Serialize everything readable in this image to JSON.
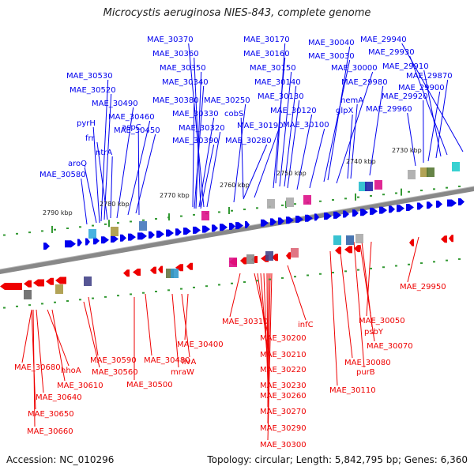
{
  "title": "Microcystis aeruginosa NIES-843, complete genome",
  "accession": "Accession: NC_010296",
  "topology": "Topology: circular; Length: 5,842,795 bp; Genes: 6,360",
  "colors": {
    "plus_strand": "#0000ee",
    "minus_strand": "#ee0000",
    "backbone": "#888888",
    "tick": "#339933"
  },
  "ticks": [
    "2730 kbp",
    "2740 kbp",
    "2750 kbp",
    "2760 kbp",
    "2770 kbp",
    "2780 kbp",
    "2790 kbp"
  ],
  "top_labels": [
    "MAE_29940",
    "MAE_30170",
    "MAE_30370",
    "MAE_30040",
    "MAE_29930",
    "MAE_30160",
    "MAE_30360",
    "MAE_30030",
    "MAE_29910",
    "MAE_30530",
    "MAE_30150",
    "MAE_30350",
    "MAE_30000",
    "MAE_29870",
    "MAE_30520",
    "MAE_30140",
    "MAE_30340",
    "MAE_29980",
    "MAE_29900",
    "MAE_30490",
    "MAE_30380",
    "MAE_30250",
    "MAE_30130",
    "hemA",
    "MAE_29920",
    "MAE_30460",
    "MAE_30330",
    "cobS",
    "MAE_30120",
    "glpX",
    "MAE_29960",
    "pyrH",
    "MAE_30450",
    "MAE_30320",
    "MAE_30190",
    "MAE_30100",
    "frr",
    "MAE_30390",
    "MAE_30280",
    "ntrA",
    "aspC",
    "aroQ",
    "MAE_30580"
  ],
  "bottom_labels": [
    "MAE_29950",
    "MAE_30050",
    "MAE_30310",
    "infC",
    "psbY",
    "MAE_30200",
    "MAE_30400",
    "MAE_30070",
    "MAE_30210",
    "MAE_30590",
    "MAE_30480",
    "ilvA",
    "MAE_30680",
    "hhoA",
    "MAE_30560",
    "mraW",
    "MAE_30220",
    "MAE_30080",
    "purB",
    "MAE_30610",
    "MAE_30500",
    "MAE_30230",
    "MAE_30640",
    "MAE_30110",
    "MAE_30260",
    "MAE_30650",
    "MAE_30270",
    "MAE_30660",
    "MAE_30290",
    "MAE_30300"
  ]
}
